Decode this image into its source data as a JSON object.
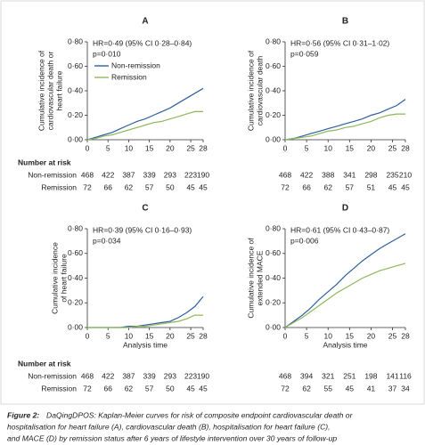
{
  "chart_data": [
    {
      "type": "line",
      "panel": "A",
      "ylabel": [
        "Cumulative incidence of",
        "cardiovascular death or",
        "heart failure"
      ],
      "annotations": [
        "HR=0·49 (95% CI 0·28–0·84)",
        "p=0·010"
      ],
      "legend": true,
      "x": [
        0,
        2,
        4,
        6,
        8,
        10,
        12,
        14,
        16,
        18,
        20,
        22,
        24,
        26,
        28
      ],
      "series": [
        {
          "name": "Non-remission",
          "color": "#2f5f9e",
          "values": [
            0,
            0.02,
            0.04,
            0.06,
            0.09,
            0.12,
            0.15,
            0.17,
            0.2,
            0.23,
            0.26,
            0.3,
            0.34,
            0.38,
            0.42
          ]
        },
        {
          "name": "Remission",
          "color": "#8db85a",
          "values": [
            0,
            0.01,
            0.03,
            0.04,
            0.06,
            0.08,
            0.1,
            0.12,
            0.14,
            0.15,
            0.17,
            0.19,
            0.21,
            0.23,
            0.23
          ]
        }
      ],
      "xlim": [
        0,
        28
      ],
      "xticks": [
        0,
        5,
        10,
        15,
        20,
        25,
        28
      ],
      "ylim": [
        0,
        0.8
      ],
      "yticks": [
        {
          "value": 0,
          "label": "0·00"
        },
        {
          "value": 0.2,
          "label": "0·20"
        },
        {
          "value": 0.4,
          "label": "0·40"
        },
        {
          "value": 0.6,
          "label": "0·60"
        },
        {
          "value": 0.8,
          "label": "0·80"
        }
      ],
      "risk_table": {
        "title": "Number at risk",
        "row_labels": [
          "Non-remission",
          "Remission"
        ],
        "rows": [
          [
            468,
            422,
            387,
            339,
            293,
            223,
            190
          ],
          [
            72,
            66,
            62,
            57,
            50,
            45,
            45
          ]
        ]
      }
    },
    {
      "type": "line",
      "panel": "B",
      "ylabel": [
        "Cumulative incidence of",
        "cardiovascular death"
      ],
      "annotations": [
        "HR=0·56 (95% CI 0·31–1·02)",
        "p=0·059"
      ],
      "x": [
        0,
        2,
        4,
        6,
        8,
        10,
        12,
        14,
        16,
        18,
        20,
        22,
        24,
        26,
        28
      ],
      "series": [
        {
          "color": "#2f5f9e",
          "values": [
            0,
            0.01,
            0.03,
            0.05,
            0.07,
            0.09,
            0.11,
            0.13,
            0.15,
            0.17,
            0.2,
            0.22,
            0.25,
            0.28,
            0.33
          ]
        },
        {
          "color": "#8db85a",
          "values": [
            0,
            0.01,
            0.02,
            0.03,
            0.05,
            0.07,
            0.08,
            0.1,
            0.11,
            0.13,
            0.15,
            0.18,
            0.2,
            0.21,
            0.21
          ]
        }
      ],
      "xlim": [
        0,
        28
      ],
      "xticks": [
        0,
        5,
        10,
        15,
        20,
        25,
        28
      ],
      "ylim": [
        0,
        0.8
      ],
      "yticks": [
        {
          "value": 0,
          "label": "0·00"
        },
        {
          "value": 0.2,
          "label": "0·20"
        },
        {
          "value": 0.4,
          "label": "0·40"
        },
        {
          "value": 0.6,
          "label": "0·60"
        },
        {
          "value": 0.8,
          "label": "0·80"
        }
      ],
      "risk_table": {
        "rows": [
          [
            468,
            422,
            388,
            341,
            298,
            235,
            210
          ],
          [
            72,
            66,
            62,
            57,
            51,
            45,
            45
          ]
        ]
      }
    },
    {
      "type": "line",
      "panel": "C",
      "ylabel": [
        "Cumulative incidence",
        "of heart failure"
      ],
      "xlabel": "Analysis time",
      "annotations": [
        "HR=0·39 (95% CI 0·16–0·93)",
        "p=0·034"
      ],
      "x": [
        0,
        2,
        4,
        6,
        8,
        10,
        12,
        14,
        16,
        18,
        20,
        22,
        24,
        26,
        28
      ],
      "series": [
        {
          "color": "#2f5f9e",
          "values": [
            0,
            0,
            0,
            0,
            0,
            0.01,
            0.01,
            0.02,
            0.03,
            0.04,
            0.05,
            0.08,
            0.12,
            0.17,
            0.25
          ]
        },
        {
          "color": "#8db85a",
          "values": [
            0,
            0,
            0,
            0,
            0,
            0,
            0.01,
            0.01,
            0.02,
            0.03,
            0.04,
            0.05,
            0.07,
            0.1,
            0.1
          ]
        }
      ],
      "xlim": [
        0,
        28
      ],
      "xticks": [
        0,
        5,
        10,
        15,
        20,
        25,
        28
      ],
      "ylim": [
        0,
        0.8
      ],
      "yticks": [
        {
          "value": 0,
          "label": "0·00"
        },
        {
          "value": 0.2,
          "label": "0·20"
        },
        {
          "value": 0.4,
          "label": "0·40"
        },
        {
          "value": 0.6,
          "label": "0·60"
        },
        {
          "value": 0.8,
          "label": "0·80"
        }
      ],
      "risk_table": {
        "title": "Number at risk",
        "row_labels": [
          "Non-remission",
          "Remission"
        ],
        "rows": [
          [
            468,
            422,
            387,
            339,
            293,
            223,
            190
          ],
          [
            72,
            66,
            62,
            57,
            50,
            45,
            45
          ]
        ]
      }
    },
    {
      "type": "line",
      "panel": "D",
      "ylabel": [
        "Cumulative incidence of",
        "extended MACE"
      ],
      "xlabel": "Analysis time",
      "annotations": [
        "HR=0·61 (95% CI 0·43–0·87)",
        "p=0·006"
      ],
      "x": [
        0,
        2,
        4,
        6,
        8,
        10,
        12,
        14,
        16,
        18,
        20,
        22,
        24,
        26,
        28
      ],
      "series": [
        {
          "color": "#2f5f9e",
          "values": [
            0,
            0.05,
            0.1,
            0.16,
            0.23,
            0.29,
            0.35,
            0.42,
            0.48,
            0.54,
            0.59,
            0.64,
            0.68,
            0.72,
            0.76
          ]
        },
        {
          "color": "#8db85a",
          "values": [
            0,
            0.04,
            0.08,
            0.13,
            0.18,
            0.23,
            0.28,
            0.32,
            0.36,
            0.4,
            0.43,
            0.46,
            0.48,
            0.5,
            0.52
          ]
        }
      ],
      "xlim": [
        0,
        28
      ],
      "xticks": [
        0,
        5,
        10,
        15,
        20,
        25,
        28
      ],
      "ylim": [
        0,
        0.8
      ],
      "yticks": [
        {
          "value": 0,
          "label": "0·00"
        },
        {
          "value": 0.2,
          "label": "0·20"
        },
        {
          "value": 0.4,
          "label": "0·40"
        },
        {
          "value": 0.6,
          "label": "0·60"
        },
        {
          "value": 0.8,
          "label": "0·80"
        }
      ],
      "risk_table": {
        "rows": [
          [
            468,
            394,
            321,
            251,
            198,
            141,
            116
          ],
          [
            72,
            62,
            55,
            45,
            41,
            37,
            34
          ]
        ]
      }
    }
  ],
  "caption": {
    "label": "Figure 2:",
    "lines": [
      "DaQingDPOS: Kaplan-Meier curves for risk of composite endpoint cardiovascular death or",
      "hospitalisation for heart failure (A), cardiovascular death (B), hospitalisation for heart failure (C),",
      "and MACE (D) by remission status after 6 years of lifestyle intervention over 30 years of follow-up"
    ]
  }
}
